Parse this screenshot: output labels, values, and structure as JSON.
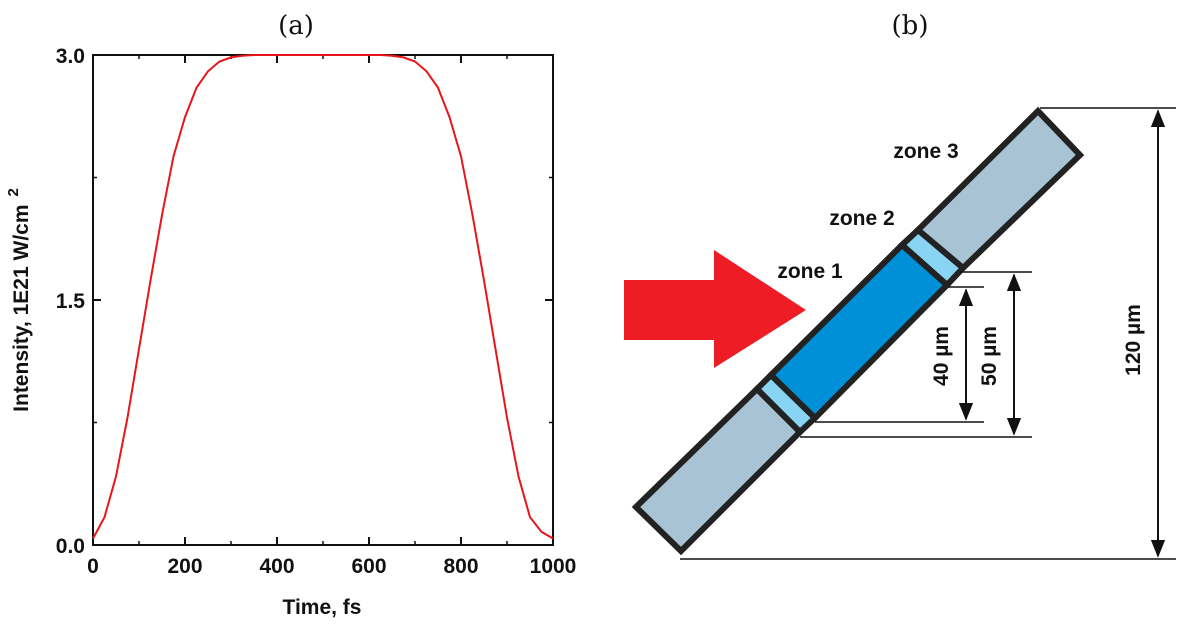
{
  "panel_a": {
    "label": "(a)",
    "xlabel": "Time, fs",
    "ylabel": "Intensity, 1E21 W/cm",
    "ylabel_superscript": "2"
  },
  "panel_b": {
    "label": "(b)",
    "zones": [
      "zone 1",
      "zone 2",
      "zone 3"
    ],
    "dimensions": [
      "40 µm",
      "50 µm",
      "120 µm"
    ],
    "colors": {
      "zone1": "#0090d8",
      "zone2": "#88d4f2",
      "zone3": "#a8c4d4",
      "arrow": "#ee1c25",
      "outline": "#222222"
    }
  },
  "chart_data": {
    "type": "line",
    "title": "",
    "xlabel": "Time, fs",
    "ylabel": "Intensity, 1E21 W/cm2",
    "xlim": [
      0,
      1000
    ],
    "ylim": [
      0,
      3.0
    ],
    "xticks": [
      "0",
      "200",
      "400",
      "600",
      "800",
      "1000"
    ],
    "yticks": [
      "0.0",
      "1.5",
      "3.0"
    ],
    "grid": false,
    "color": "#e8151b",
    "series": [
      {
        "x": [
          0,
          25,
          50,
          75,
          100,
          125,
          150,
          175,
          200,
          225,
          250,
          275,
          300,
          325,
          350,
          375,
          400,
          450,
          500,
          550,
          600,
          625,
          650,
          675,
          700,
          725,
          750,
          775,
          800,
          825,
          850,
          875,
          900,
          925,
          950,
          975,
          1000
        ],
        "values": [
          0.04,
          0.17,
          0.42,
          0.78,
          1.2,
          1.62,
          2.02,
          2.38,
          2.62,
          2.8,
          2.9,
          2.96,
          2.985,
          2.995,
          3.0,
          3.0,
          3.0,
          3.0,
          3.0,
          3.0,
          3.0,
          3.0,
          2.995,
          2.985,
          2.96,
          2.9,
          2.8,
          2.62,
          2.38,
          2.02,
          1.62,
          1.2,
          0.78,
          0.42,
          0.17,
          0.08,
          0.04
        ]
      }
    ]
  }
}
